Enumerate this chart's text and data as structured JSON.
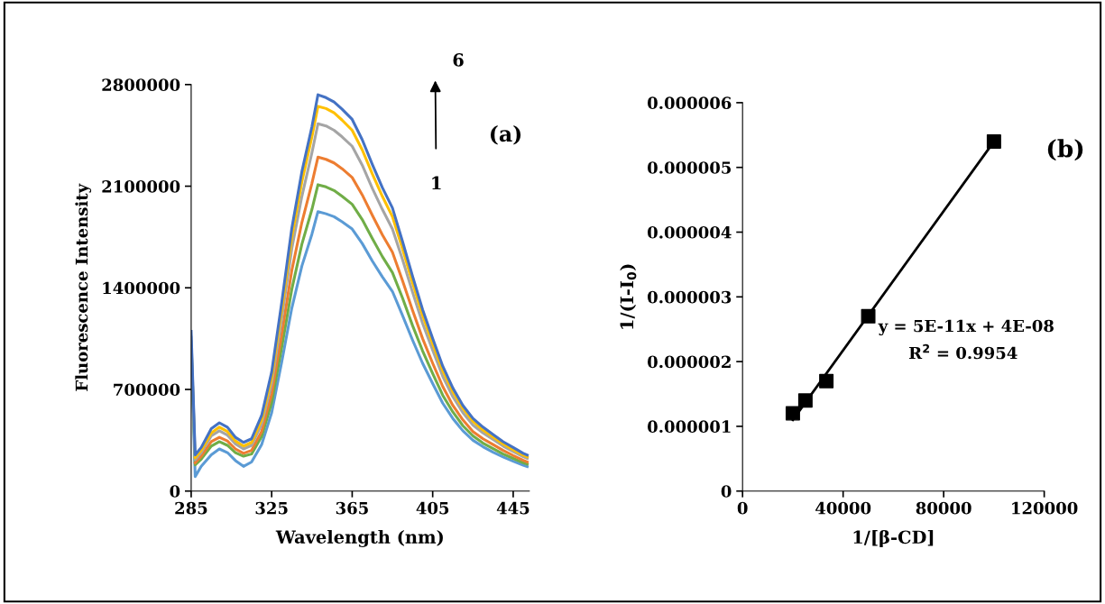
{
  "chart_data": [
    {
      "type": "line",
      "xlabel": "Wavelength (nm)",
      "ylabel": "Fluorescence Intensity",
      "xlim": [
        285,
        453
      ],
      "xticks": [
        285,
        325,
        365,
        405,
        445
      ],
      "ylim": [
        0,
        2800000
      ],
      "yticks": [
        0,
        700000,
        1400000,
        2100000,
        2800000
      ],
      "grid": false,
      "legend": false,
      "marker": "none",
      "line_style": "solid",
      "annotations": [
        "(a)",
        "1",
        "6"
      ],
      "x": [
        285,
        287,
        290,
        295,
        299,
        303,
        307,
        311,
        315,
        320,
        325,
        330,
        335,
        340,
        345,
        348,
        352,
        356,
        360,
        365,
        370,
        375,
        380,
        385,
        390,
        395,
        400,
        405,
        410,
        415,
        420,
        425,
        430,
        435,
        440,
        445,
        450,
        452
      ],
      "series": [
        {
          "color": "#5b9bd5",
          "values": [
            1000000,
            100000,
            170000,
            250000,
            290000,
            265000,
            210000,
            170000,
            200000,
            320000,
            540000,
            890000,
            1260000,
            1550000,
            1770000,
            1925000,
            1910000,
            1890000,
            1855000,
            1805000,
            1705000,
            1585000,
            1475000,
            1375000,
            1210000,
            1040000,
            880000,
            740000,
            605000,
            500000,
            415000,
            350000,
            305000,
            268000,
            235000,
            205000,
            178000,
            168000
          ]
        },
        {
          "color": "#70ad47",
          "values": [
            1030000,
            180000,
            220000,
            310000,
            340000,
            315000,
            265000,
            240000,
            255000,
            375000,
            610000,
            990000,
            1390000,
            1700000,
            1940000,
            2110000,
            2095000,
            2070000,
            2030000,
            1975000,
            1870000,
            1740000,
            1615000,
            1505000,
            1330000,
            1140000,
            965000,
            810000,
            660000,
            545000,
            450000,
            380000,
            330000,
            292000,
            255000,
            225000,
            195000,
            185000
          ]
        },
        {
          "color": "#ed7d31",
          "values": [
            null,
            195000,
            240000,
            340000,
            370000,
            345000,
            290000,
            260000,
            280000,
            410000,
            670000,
            1080000,
            1520000,
            1850000,
            2120000,
            2300000,
            2285000,
            2260000,
            2220000,
            2160000,
            2040000,
            1900000,
            1765000,
            1645000,
            1450000,
            1245000,
            1050000,
            880000,
            720000,
            590000,
            490000,
            410000,
            360000,
            320000,
            280000,
            245000,
            212000,
            200000
          ]
        },
        {
          "color": "#a5a5a5",
          "values": [
            1060000,
            215000,
            265000,
            380000,
            415000,
            385000,
            325000,
            290000,
            315000,
            460000,
            740000,
            1190000,
            1670000,
            2030000,
            2330000,
            2530000,
            2515000,
            2485000,
            2440000,
            2375000,
            2245000,
            2085000,
            1940000,
            1805000,
            1595000,
            1370000,
            1155000,
            970000,
            790000,
            650000,
            540000,
            455000,
            400000,
            355000,
            310000,
            272000,
            236000,
            225000
          ]
        },
        {
          "color": "#ffc000",
          "values": [
            null,
            230000,
            280000,
            400000,
            440000,
            410000,
            345000,
            310000,
            335000,
            490000,
            780000,
            1250000,
            1750000,
            2130000,
            2440000,
            2650000,
            2635000,
            2605000,
            2555000,
            2485000,
            2350000,
            2185000,
            2030000,
            1890000,
            1670000,
            1435000,
            1210000,
            1015000,
            830000,
            685000,
            570000,
            480000,
            420000,
            372000,
            325000,
            285000,
            247000,
            235000
          ]
        },
        {
          "color": "#4472c4",
          "values": [
            1100000,
            250000,
            300000,
            430000,
            470000,
            440000,
            370000,
            335000,
            360000,
            520000,
            820000,
            1300000,
            1810000,
            2200000,
            2510000,
            2730000,
            2710000,
            2680000,
            2630000,
            2560000,
            2420000,
            2250000,
            2090000,
            1950000,
            1720000,
            1480000,
            1250000,
            1050000,
            860000,
            710000,
            590000,
            500000,
            440000,
            390000,
            340000,
            300000,
            260000,
            248000
          ]
        }
      ]
    },
    {
      "type": "scatter",
      "xlabel": "1/[β-CD]",
      "ylabel": "1/(I-I$_{0}$)",
      "xlim": [
        0,
        120000
      ],
      "xticks": [
        0,
        40000,
        80000,
        120000
      ],
      "ylim": [
        0,
        6e-06
      ],
      "yticks": [
        0,
        {
          "value": 1e-06,
          "label": "0.000001"
        },
        {
          "value": 2e-06,
          "label": "0.000002"
        },
        {
          "value": 3e-06,
          "label": "0.000003"
        },
        {
          "value": 4e-06,
          "label": "0.000004"
        },
        {
          "value": 5e-06,
          "label": "0.000005"
        },
        {
          "value": 6e-06,
          "label": "0.000006"
        }
      ],
      "grid": false,
      "legend": false,
      "annotations": [
        "(b)",
        "y = 5E-11x + 4E-08",
        "R$^{2}$ = 0.9954"
      ],
      "series": [
        {
          "type": "scatter",
          "color": "#000000",
          "marker": "square",
          "x": [
            20000,
            25000,
            33333,
            50000,
            100000
          ],
          "values": [
            1.2e-06,
            1.4e-06,
            1.7e-06,
            2.7e-06,
            5.4e-06
          ]
        },
        {
          "type": "line",
          "color": "#000000",
          "marker": "none",
          "line_style": "solid",
          "x": [
            20000,
            100000
          ],
          "values": [
            1.1e-06,
            5.4e-06
          ]
        }
      ]
    }
  ]
}
